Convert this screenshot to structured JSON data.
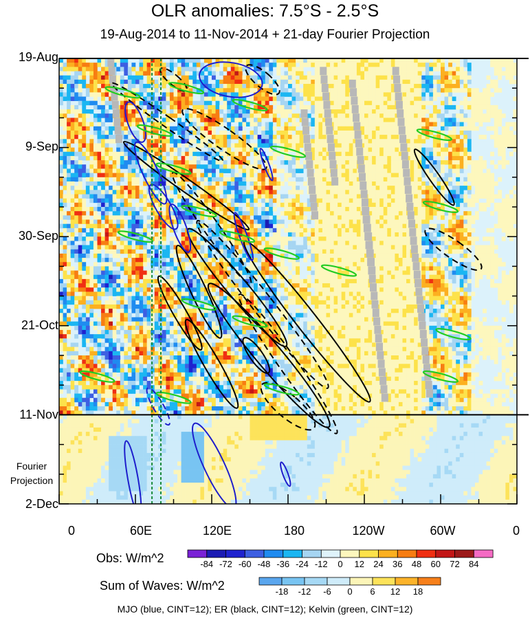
{
  "chart_data": {
    "type": "heatmap",
    "title": "OLR anomalies: 7.5°S - 2.5°S",
    "subtitle": "19-Aug-2014 to 11-Nov-2014 + 21-day Fourier Projection",
    "xlabel": "",
    "ylabel": "",
    "x_tick_labels": [
      "0",
      "60E",
      "120E",
      "180",
      "120W",
      "60W",
      "0"
    ],
    "x_tick_values_deg_east": [
      0,
      60,
      120,
      180,
      240,
      300,
      360
    ],
    "xlim": [
      0,
      360
    ],
    "y_tick_labels": [
      "19-Aug",
      "9-Sep",
      "30-Sep",
      "21-Oct",
      "11-Nov",
      "2-Dec"
    ],
    "ylim": [
      "19-Aug-2014",
      "2-Dec-2014"
    ],
    "y_reverse": true,
    "projection_start": "11-Nov",
    "projection_label": "Fourier\nProjection",
    "dashed_reference_lines_deg_east": [
      73,
      80
    ],
    "obs_colorbar": {
      "label": "Obs: W/m^2",
      "levels": [
        -84,
        -72,
        -60,
        -48,
        -36,
        -24,
        -12,
        0,
        12,
        24,
        36,
        48,
        60,
        72,
        84
      ],
      "colors": [
        "#7a22d6",
        "#1c1cb4",
        "#1f23cf",
        "#3d5fe2",
        "#1f8bf0",
        "#1bb6f2",
        "#a6d5f2",
        "#dff3fb",
        "#fdf7bd",
        "#fde24a",
        "#fcb020",
        "#f77d12",
        "#f02f12",
        "#c31717",
        "#9c1a1a",
        "#f56bc4"
      ]
    },
    "waves_colorbar": {
      "label": "Sum of Waves: W/m^2",
      "levels": [
        -18,
        -12,
        -6,
        0,
        6,
        12,
        18
      ],
      "colors": [
        "#5aa6ee",
        "#78c4f2",
        "#a6d9f5",
        "#cfecfa",
        "#fcf5b8",
        "#fde35a",
        "#fcb32a",
        "#f7801b"
      ]
    },
    "contours": {
      "mjo": {
        "color": "#1d1dcc",
        "cint": 12
      },
      "er": {
        "color": "#000000",
        "cint": 12
      },
      "kelvin": {
        "color": "#22cc22",
        "cint": 12
      }
    },
    "footnote": "MJO (blue, CINT=12); ER (black, CINT=12); Kelvin (green, CINT=12)"
  }
}
